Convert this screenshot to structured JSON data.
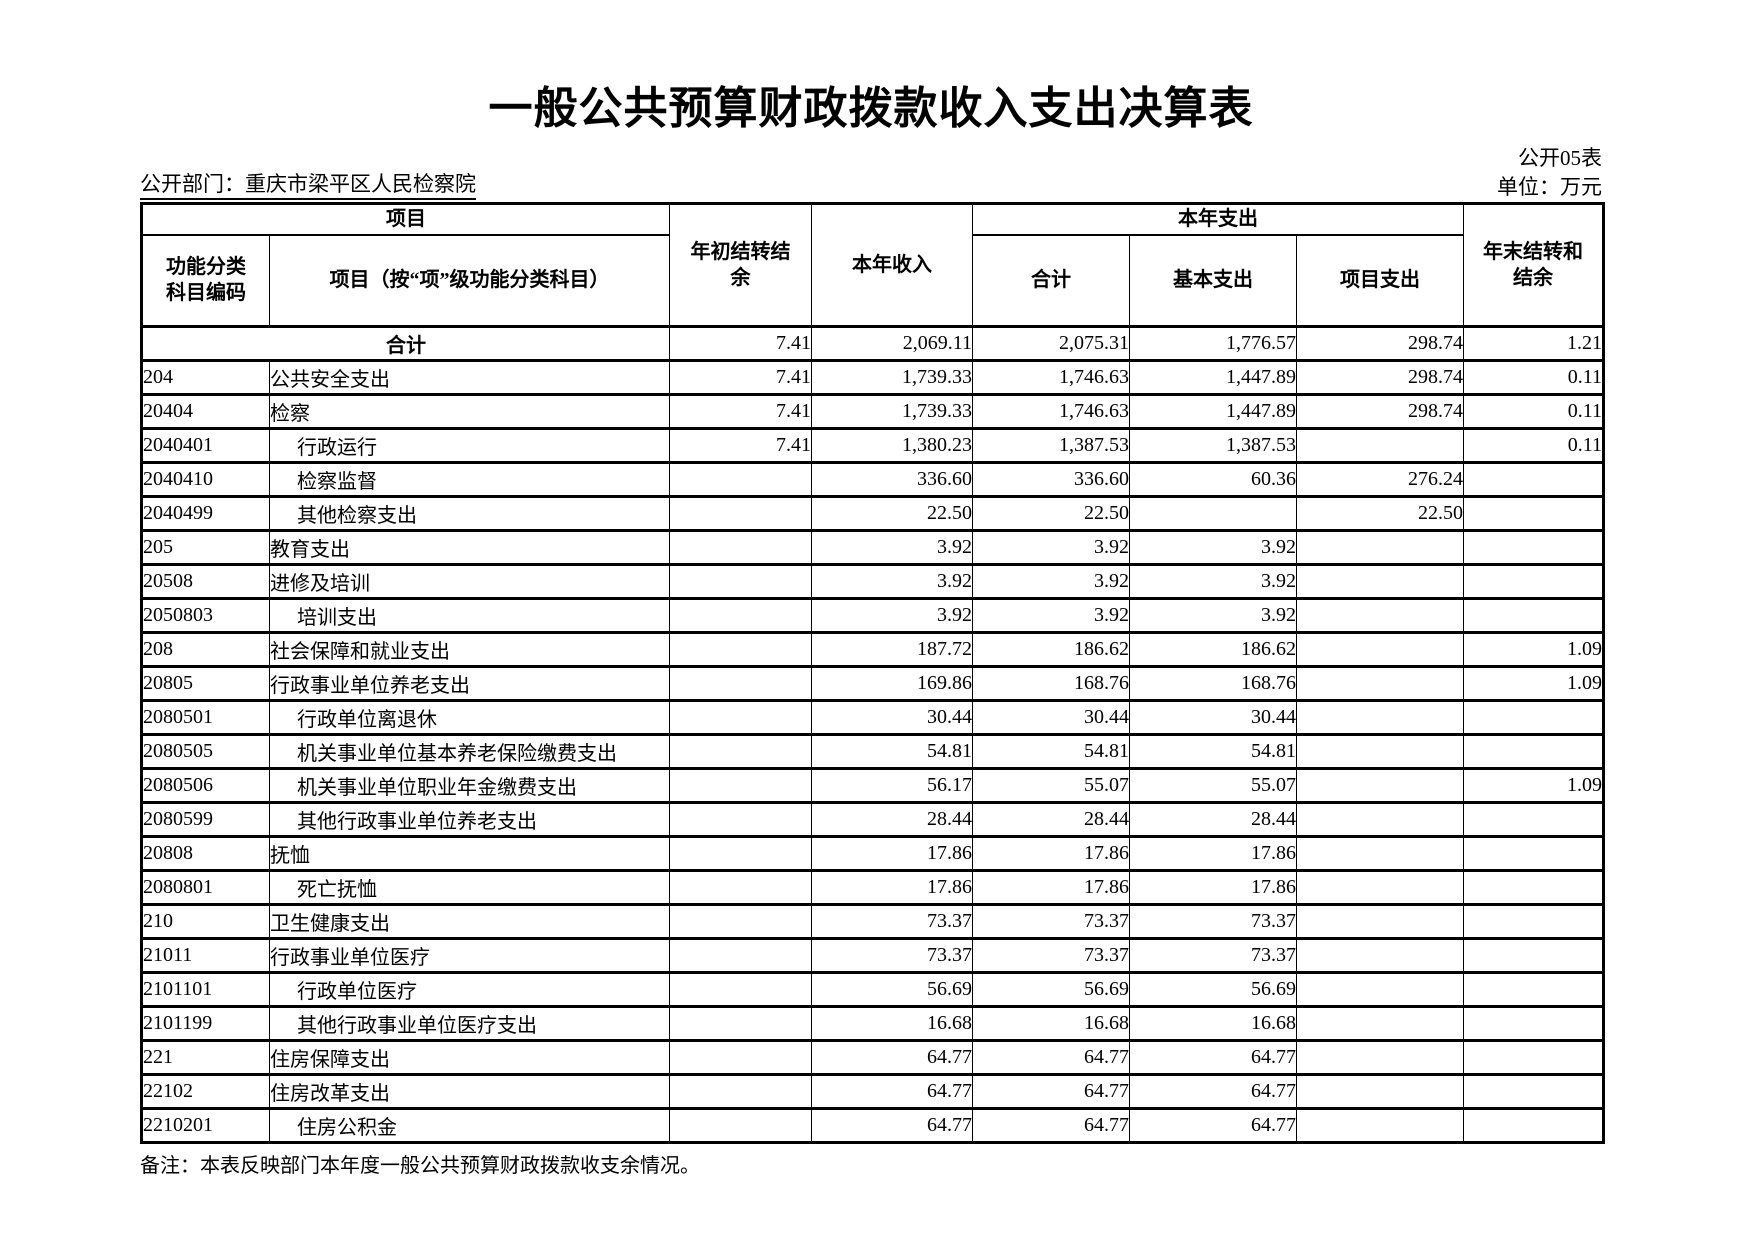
{
  "page": {
    "title": "一般公共预算财政拨款收入支出决算表",
    "sheet_label": "公开05表",
    "department_label": "公开部门：重庆市梁平区人民检察院",
    "unit_label": "单位：万元",
    "note": "备注：本表反映部门本年度一般公共预算财政拨款收支余情况。"
  },
  "table": {
    "header": {
      "group_item": "项目",
      "group_current_expenditure": "本年支出",
      "col_function_code": "功能分类\n科目编码",
      "col_item_name": "项目（按“项”级功能分类科目）",
      "col_opening_carryover": "年初结转结\n余",
      "col_current_income": "本年收入",
      "col_exp_total": "合计",
      "col_exp_basic": "基本支出",
      "col_exp_project": "项目支出",
      "col_closing_carryover": "年末结转和\n结余"
    },
    "rows": [
      {
        "code": "",
        "name": "合计",
        "total_row": true,
        "indent": false,
        "values": [
          "7.41",
          "2,069.11",
          "2,075.31",
          "1,776.57",
          "298.74",
          "1.21"
        ]
      },
      {
        "code": "204",
        "name": "公共安全支出",
        "total_row": false,
        "indent": false,
        "values": [
          "7.41",
          "1,739.33",
          "1,746.63",
          "1,447.89",
          "298.74",
          "0.11"
        ]
      },
      {
        "code": "20404",
        "name": "检察",
        "total_row": false,
        "indent": false,
        "values": [
          "7.41",
          "1,739.33",
          "1,746.63",
          "1,447.89",
          "298.74",
          "0.11"
        ]
      },
      {
        "code": "2040401",
        "name": "行政运行",
        "total_row": false,
        "indent": true,
        "values": [
          "7.41",
          "1,380.23",
          "1,387.53",
          "1,387.53",
          "",
          "0.11"
        ]
      },
      {
        "code": "2040410",
        "name": "检察监督",
        "total_row": false,
        "indent": true,
        "values": [
          "",
          "336.60",
          "336.60",
          "60.36",
          "276.24",
          ""
        ]
      },
      {
        "code": "2040499",
        "name": "其他检察支出",
        "total_row": false,
        "indent": true,
        "values": [
          "",
          "22.50",
          "22.50",
          "",
          "22.50",
          ""
        ]
      },
      {
        "code": "205",
        "name": "教育支出",
        "total_row": false,
        "indent": false,
        "values": [
          "",
          "3.92",
          "3.92",
          "3.92",
          "",
          ""
        ]
      },
      {
        "code": "20508",
        "name": "进修及培训",
        "total_row": false,
        "indent": false,
        "values": [
          "",
          "3.92",
          "3.92",
          "3.92",
          "",
          ""
        ]
      },
      {
        "code": "2050803",
        "name": "培训支出",
        "total_row": false,
        "indent": true,
        "values": [
          "",
          "3.92",
          "3.92",
          "3.92",
          "",
          ""
        ]
      },
      {
        "code": "208",
        "name": "社会保障和就业支出",
        "total_row": false,
        "indent": false,
        "values": [
          "",
          "187.72",
          "186.62",
          "186.62",
          "",
          "1.09"
        ]
      },
      {
        "code": "20805",
        "name": "行政事业单位养老支出",
        "total_row": false,
        "indent": false,
        "values": [
          "",
          "169.86",
          "168.76",
          "168.76",
          "",
          "1.09"
        ]
      },
      {
        "code": "2080501",
        "name": "行政单位离退休",
        "total_row": false,
        "indent": true,
        "values": [
          "",
          "30.44",
          "30.44",
          "30.44",
          "",
          ""
        ]
      },
      {
        "code": "2080505",
        "name": "机关事业单位基本养老保险缴费支出",
        "total_row": false,
        "indent": true,
        "values": [
          "",
          "54.81",
          "54.81",
          "54.81",
          "",
          ""
        ]
      },
      {
        "code": "2080506",
        "name": "机关事业单位职业年金缴费支出",
        "total_row": false,
        "indent": true,
        "values": [
          "",
          "56.17",
          "55.07",
          "55.07",
          "",
          "1.09"
        ]
      },
      {
        "code": "2080599",
        "name": "其他行政事业单位养老支出",
        "total_row": false,
        "indent": true,
        "values": [
          "",
          "28.44",
          "28.44",
          "28.44",
          "",
          ""
        ]
      },
      {
        "code": "20808",
        "name": "抚恤",
        "total_row": false,
        "indent": false,
        "values": [
          "",
          "17.86",
          "17.86",
          "17.86",
          "",
          ""
        ]
      },
      {
        "code": "2080801",
        "name": "死亡抚恤",
        "total_row": false,
        "indent": true,
        "values": [
          "",
          "17.86",
          "17.86",
          "17.86",
          "",
          ""
        ]
      },
      {
        "code": "210",
        "name": "卫生健康支出",
        "total_row": false,
        "indent": false,
        "values": [
          "",
          "73.37",
          "73.37",
          "73.37",
          "",
          ""
        ]
      },
      {
        "code": "21011",
        "name": "行政事业单位医疗",
        "total_row": false,
        "indent": false,
        "values": [
          "",
          "73.37",
          "73.37",
          "73.37",
          "",
          ""
        ]
      },
      {
        "code": "2101101",
        "name": "行政单位医疗",
        "total_row": false,
        "indent": true,
        "values": [
          "",
          "56.69",
          "56.69",
          "56.69",
          "",
          ""
        ]
      },
      {
        "code": "2101199",
        "name": "其他行政事业单位医疗支出",
        "total_row": false,
        "indent": true,
        "values": [
          "",
          "16.68",
          "16.68",
          "16.68",
          "",
          ""
        ]
      },
      {
        "code": "221",
        "name": "住房保障支出",
        "total_row": false,
        "indent": false,
        "values": [
          "",
          "64.77",
          "64.77",
          "64.77",
          "",
          ""
        ]
      },
      {
        "code": "22102",
        "name": "住房改革支出",
        "total_row": false,
        "indent": false,
        "values": [
          "",
          "64.77",
          "64.77",
          "64.77",
          "",
          ""
        ]
      },
      {
        "code": "2210201",
        "name": "住房公积金",
        "total_row": false,
        "indent": true,
        "values": [
          "",
          "64.77",
          "64.77",
          "64.77",
          "",
          ""
        ]
      }
    ]
  }
}
